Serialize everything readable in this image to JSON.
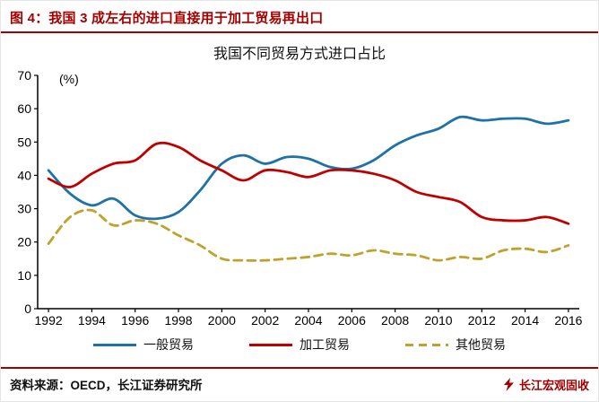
{
  "header": {
    "title": "图 4：我国 3 成左右的进口直接用于加工贸易再出口"
  },
  "chart_data": {
    "type": "line",
    "title": "我国不同贸易方式进口占比",
    "unit_label": "(%)",
    "xlabel": "",
    "ylabel": "",
    "xlim": [
      1991.5,
      2016.5
    ],
    "ylim": [
      0,
      70
    ],
    "grid": false,
    "legend_position": "bottom",
    "x": [
      1992,
      1993,
      1994,
      1995,
      1996,
      1997,
      1998,
      1999,
      2000,
      2001,
      2002,
      2003,
      2004,
      2005,
      2006,
      2007,
      2008,
      2009,
      2010,
      2011,
      2012,
      2013,
      2014,
      2015,
      2016
    ],
    "x_ticks": [
      1992,
      1994,
      1996,
      1998,
      2000,
      2002,
      2004,
      2006,
      2008,
      2010,
      2012,
      2014,
      2016
    ],
    "y_ticks": [
      0,
      10,
      20,
      30,
      40,
      50,
      60,
      70
    ],
    "series": [
      {
        "name": "一般贸易",
        "color": "#1F72A5",
        "dash": false,
        "values": [
          41.5,
          34.5,
          31,
          33,
          28,
          27,
          29,
          35.5,
          43.5,
          46,
          43.5,
          45.5,
          45,
          42.5,
          42,
          44.5,
          49,
          52,
          54,
          57.5,
          56.5,
          57,
          57,
          55.5,
          56.5
        ]
      },
      {
        "name": "加工贸易",
        "color": "#C00000",
        "dash": false,
        "values": [
          39,
          36.5,
          40.5,
          43.5,
          44.5,
          49.5,
          48.5,
          44.5,
          41.5,
          38.5,
          41.5,
          41,
          39.5,
          41.5,
          41.5,
          40.5,
          38.5,
          35,
          33.5,
          32,
          27.5,
          26.5,
          26.5,
          27.5,
          25.5
        ]
      },
      {
        "name": "其他贸易",
        "color": "#BFA22B",
        "dash": true,
        "values": [
          19.5,
          27.5,
          29.5,
          25,
          26.5,
          25.5,
          22,
          19,
          15,
          14.5,
          14.5,
          15,
          15.5,
          16.5,
          16,
          17.5,
          16.5,
          16,
          14.5,
          15.5,
          15,
          17.5,
          18,
          17,
          19
        ]
      }
    ]
  },
  "footer": {
    "source": "资料来源：OECD，长江证券研究所",
    "brand": "长江宏观固收"
  },
  "colors": {
    "accent_red": "#A40000",
    "axis_black": "#000000"
  }
}
